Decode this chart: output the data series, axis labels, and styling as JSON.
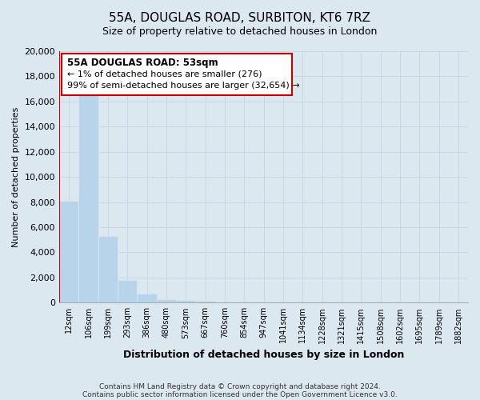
{
  "title": "55A, DOUGLAS ROAD, SURBITON, KT6 7RZ",
  "subtitle": "Size of property relative to detached houses in London",
  "xlabel": "Distribution of detached houses by size in London",
  "ylabel": "Number of detached properties",
  "bar_labels": [
    "12sqm",
    "106sqm",
    "199sqm",
    "293sqm",
    "386sqm",
    "480sqm",
    "573sqm",
    "667sqm",
    "760sqm",
    "854sqm",
    "947sqm",
    "1041sqm",
    "1134sqm",
    "1228sqm",
    "1321sqm",
    "1415sqm",
    "1508sqm",
    "1602sqm",
    "1695sqm",
    "1789sqm",
    "1882sqm"
  ],
  "bar_values": [
    8100,
    16500,
    5300,
    1800,
    750,
    300,
    200,
    150,
    0,
    0,
    0,
    0,
    0,
    0,
    0,
    0,
    0,
    0,
    0,
    0,
    0
  ],
  "bar_color": "#b8d4ea",
  "highlight_edge_color": "#cc0000",
  "ylim": [
    0,
    20000
  ],
  "yticks": [
    0,
    2000,
    4000,
    6000,
    8000,
    10000,
    12000,
    14000,
    16000,
    18000,
    20000
  ],
  "ann_line1": "55A DOUGLAS ROAD: 53sqm",
  "ann_line2": "← 1% of detached houses are smaller (276)",
  "ann_line3": "99% of semi-detached houses are larger (32,654) →",
  "footer_line1": "Contains HM Land Registry data © Crown copyright and database right 2024.",
  "footer_line2": "Contains public sector information licensed under the Open Government Licence v3.0.",
  "grid_color": "#c8d8e8",
  "plot_bg_color": "#dce8f0",
  "fig_bg_color": "#dce8f0",
  "title_fontsize": 11,
  "subtitle_fontsize": 9
}
